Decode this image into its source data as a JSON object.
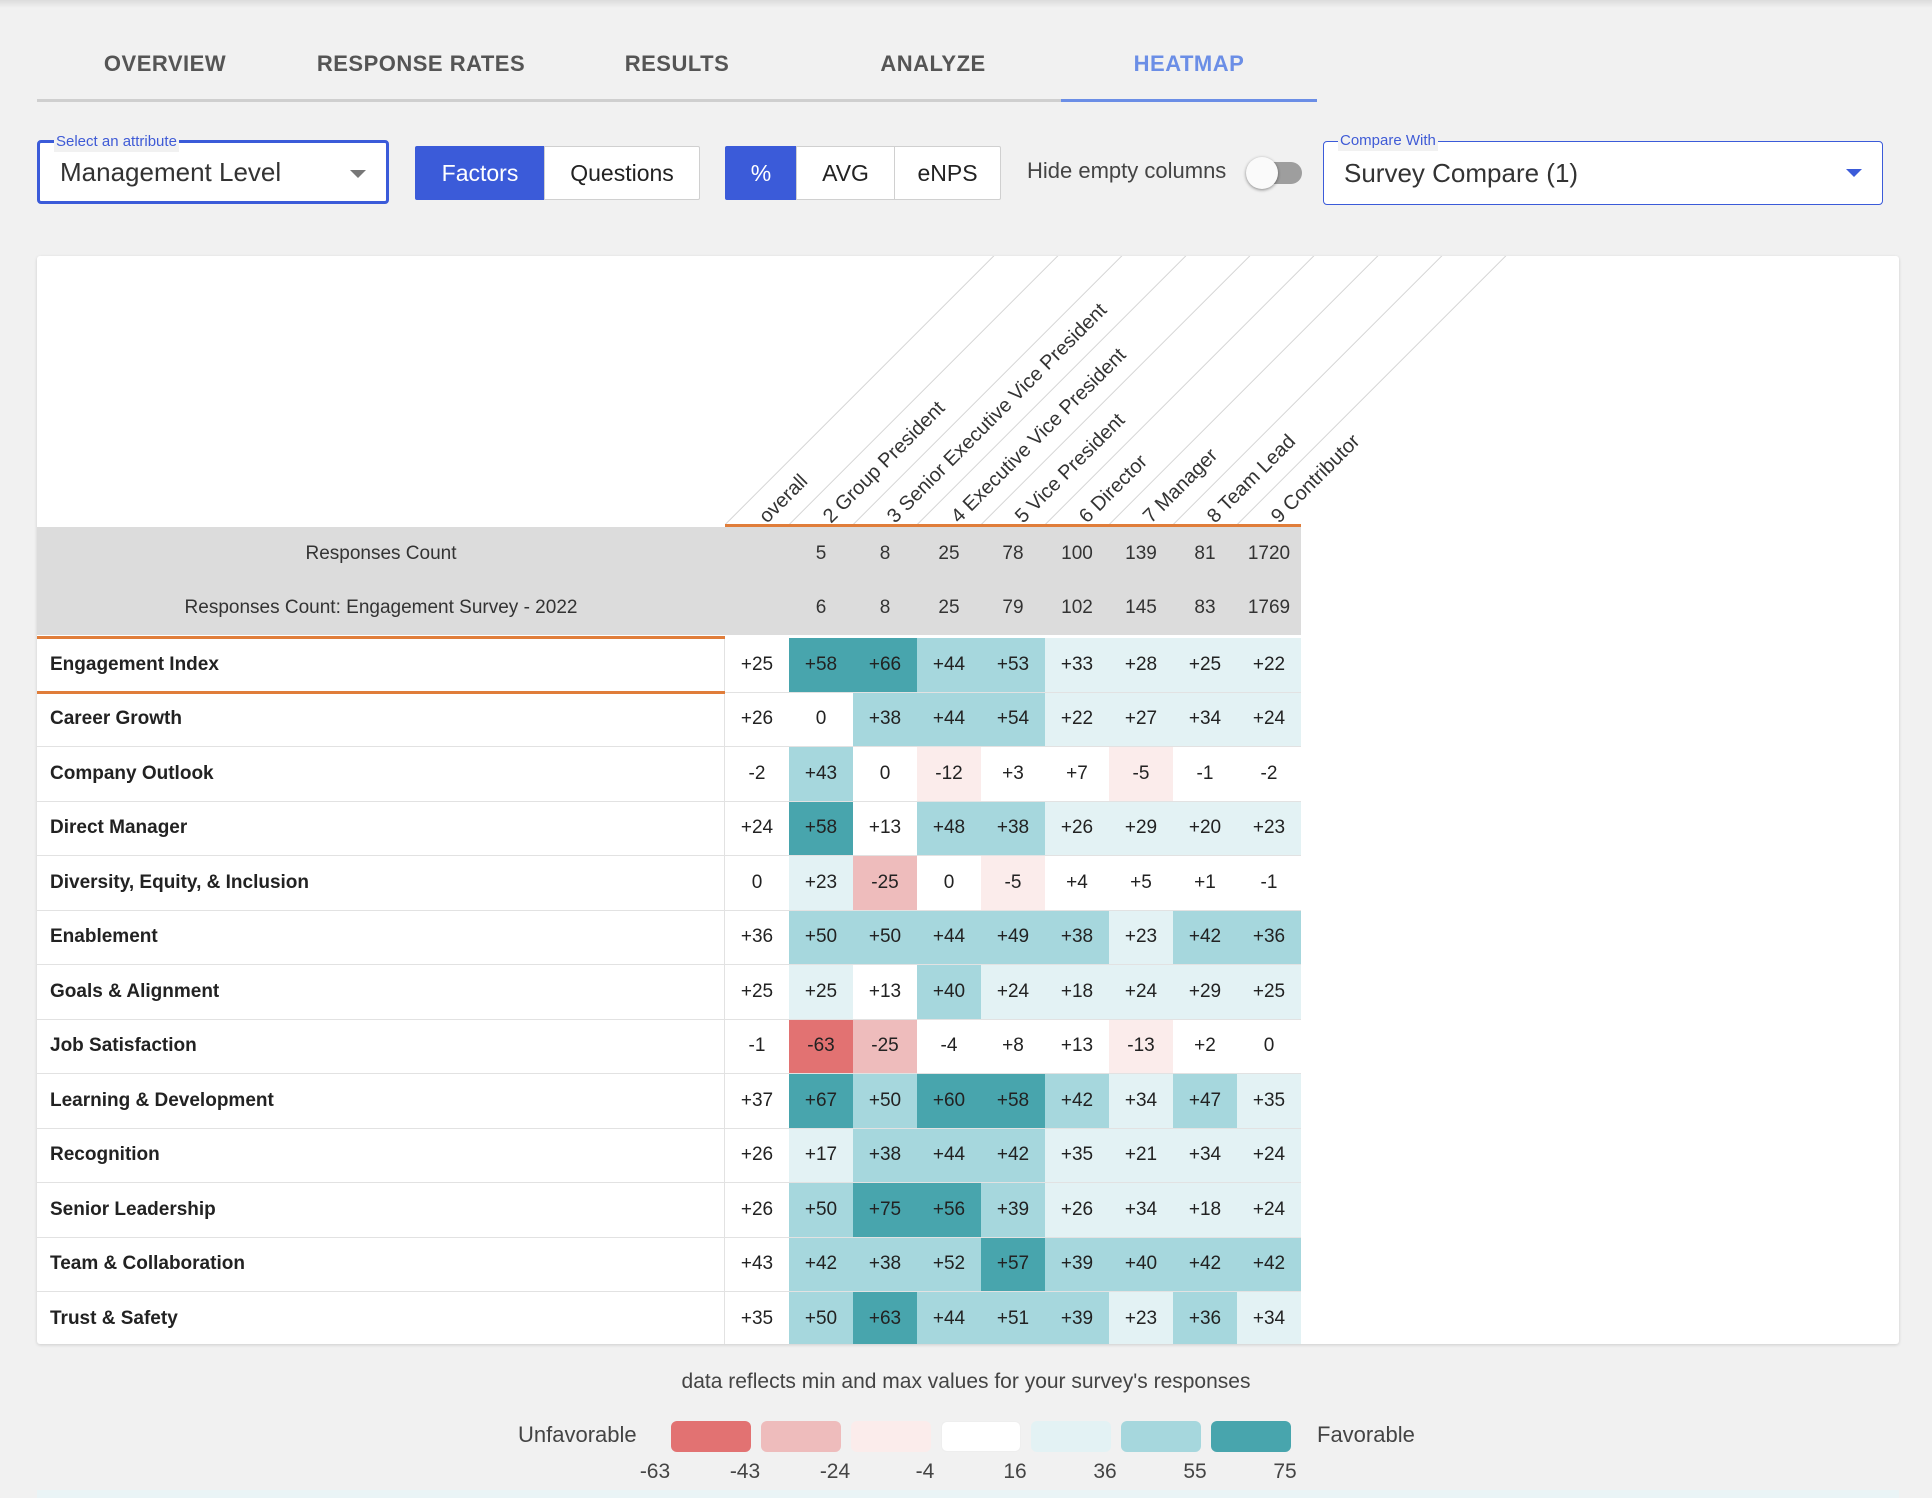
{
  "tabs": [
    {
      "label": "OVERVIEW"
    },
    {
      "label": "RESPONSE RATES"
    },
    {
      "label": "RESULTS"
    },
    {
      "label": "ANALYZE"
    },
    {
      "label": "HEATMAP",
      "active": true
    }
  ],
  "attribute_select": {
    "legend": "Select an attribute",
    "value": "Management Level"
  },
  "view_toggle": {
    "factors": "Factors",
    "questions": "Questions",
    "selected": "Factors"
  },
  "metric_toggle": {
    "percent": "%",
    "avg": "AVG",
    "enps": "eNPS",
    "selected": "%"
  },
  "hide_empty": {
    "label": "Hide empty columns",
    "on": false
  },
  "compare_select": {
    "legend": "Compare With",
    "value": "Survey Compare (1)"
  },
  "columns": [
    "overall",
    "2 Group President",
    "3 Senior Executive Vice President",
    "4 Executive Vice President",
    "5 Vice President",
    "6 Director",
    "7 Manager",
    "8 Team Lead",
    "9 Contributor"
  ],
  "counts": [
    {
      "label": "Responses Count",
      "values": [
        "",
        "5",
        "8",
        "25",
        "78",
        "100",
        "139",
        "81",
        "1720"
      ]
    },
    {
      "label": "Responses Count: Engagement Survey - 2022",
      "values": [
        "",
        "6",
        "8",
        "25",
        "79",
        "102",
        "145",
        "83",
        "1769"
      ]
    }
  ],
  "rows": [
    {
      "label": "Engagement Index",
      "values": [
        25,
        58,
        66,
        44,
        53,
        33,
        28,
        25,
        22
      ]
    },
    {
      "label": "Career Growth",
      "values": [
        26,
        0,
        38,
        44,
        54,
        22,
        27,
        34,
        24
      ]
    },
    {
      "label": "Company Outlook",
      "values": [
        -2,
        43,
        0,
        -12,
        3,
        7,
        -5,
        -1,
        -2
      ]
    },
    {
      "label": "Direct Manager",
      "values": [
        24,
        58,
        13,
        48,
        38,
        26,
        29,
        20,
        23
      ]
    },
    {
      "label": "Diversity, Equity, & Inclusion",
      "values": [
        0,
        23,
        -25,
        0,
        -5,
        4,
        5,
        1,
        -1
      ]
    },
    {
      "label": "Enablement",
      "values": [
        36,
        50,
        50,
        44,
        49,
        38,
        23,
        42,
        36
      ]
    },
    {
      "label": "Goals & Alignment",
      "values": [
        25,
        25,
        13,
        40,
        24,
        18,
        24,
        29,
        25
      ]
    },
    {
      "label": "Job Satisfaction",
      "values": [
        -1,
        -63,
        -25,
        -4,
        8,
        13,
        -13,
        2,
        0
      ]
    },
    {
      "label": "Learning & Development",
      "values": [
        37,
        67,
        50,
        60,
        58,
        42,
        34,
        47,
        35
      ]
    },
    {
      "label": "Recognition",
      "values": [
        26,
        17,
        38,
        44,
        42,
        35,
        21,
        34,
        24
      ]
    },
    {
      "label": "Senior Leadership",
      "values": [
        26,
        50,
        75,
        56,
        39,
        26,
        34,
        18,
        24
      ]
    },
    {
      "label": "Team & Collaboration",
      "values": [
        43,
        42,
        38,
        52,
        57,
        39,
        40,
        42,
        42
      ]
    },
    {
      "label": "Trust & Safety",
      "values": [
        35,
        50,
        63,
        44,
        51,
        39,
        23,
        36,
        34
      ]
    }
  ],
  "legend": {
    "note": "data reflects min and max values for your survey's responses",
    "unfavorable": "Unfavorable",
    "favorable": "Favorable",
    "colors": [
      "#e27272",
      "#eebcbc",
      "#fbeceb",
      "#ffffff",
      "#e3f2f4",
      "#a6d7dd",
      "#48a5ad"
    ],
    "ticks": [
      "-63",
      "-43",
      "-24",
      "-4",
      "16",
      "36",
      "55",
      "75"
    ]
  }
}
